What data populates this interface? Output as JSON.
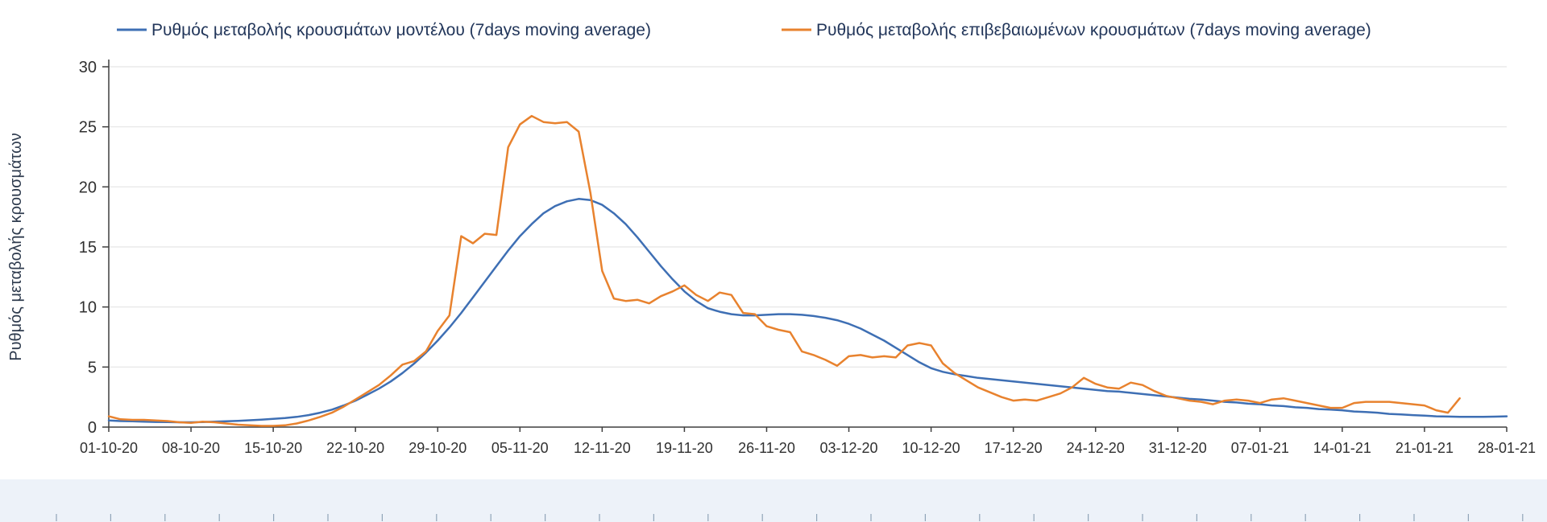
{
  "chart_data": {
    "type": "line",
    "title": "",
    "ylabel": "Ρυθμός μεταβολής κρουσμάτων",
    "xlabel": "",
    "ylim": [
      0,
      30
    ],
    "y_ticks": [
      0,
      5,
      10,
      15,
      20,
      25,
      30
    ],
    "grid": "horizontal",
    "legend_position": "top",
    "x_unit": "daily",
    "x_tick_interval_days": 7,
    "x_tick_labels": [
      "01-10-20",
      "08-10-20",
      "15-10-20",
      "22-10-20",
      "29-10-20",
      "05-11-20",
      "12-11-20",
      "19-11-20",
      "26-11-20",
      "03-12-20",
      "10-12-20",
      "17-12-20",
      "24-12-20",
      "31-12-20",
      "07-01-21",
      "14-01-21",
      "21-01-21",
      "28-01-21"
    ],
    "series": [
      {
        "name": "Ρυθμός μεταβολής κρουσμάτων μοντέλου (7days moving average)",
        "color": "#3e6fb4",
        "values": [
          0.55,
          0.5,
          0.48,
          0.45,
          0.43,
          0.42,
          0.4,
          0.4,
          0.42,
          0.45,
          0.48,
          0.52,
          0.57,
          0.62,
          0.68,
          0.75,
          0.85,
          1.0,
          1.2,
          1.45,
          1.8,
          2.2,
          2.7,
          3.2,
          3.8,
          4.5,
          5.3,
          6.2,
          7.2,
          8.3,
          9.5,
          10.8,
          12.1,
          13.4,
          14.7,
          15.9,
          16.9,
          17.8,
          18.4,
          18.8,
          19.0,
          18.9,
          18.5,
          17.8,
          16.9,
          15.8,
          14.6,
          13.4,
          12.3,
          11.3,
          10.5,
          9.9,
          9.6,
          9.4,
          9.3,
          9.3,
          9.35,
          9.4,
          9.4,
          9.35,
          9.25,
          9.1,
          8.9,
          8.6,
          8.2,
          7.7,
          7.2,
          6.6,
          6.0,
          5.4,
          4.9,
          4.6,
          4.4,
          4.25,
          4.1,
          4.0,
          3.9,
          3.8,
          3.7,
          3.6,
          3.5,
          3.4,
          3.3,
          3.2,
          3.1,
          3.0,
          2.95,
          2.85,
          2.75,
          2.65,
          2.55,
          2.45,
          2.35,
          2.3,
          2.2,
          2.1,
          2.05,
          1.95,
          1.9,
          1.8,
          1.75,
          1.65,
          1.6,
          1.5,
          1.45,
          1.4,
          1.3,
          1.25,
          1.2,
          1.1,
          1.05,
          1.0,
          0.95,
          0.9,
          0.88,
          0.86,
          0.85,
          0.85,
          0.87,
          0.9
        ]
      },
      {
        "name": "Ρυθμός μεταβολής επιβεβαιωμένων κρουσμάτων (7days moving average)",
        "color": "#e8822e",
        "values": [
          0.9,
          0.65,
          0.6,
          0.6,
          0.55,
          0.5,
          0.4,
          0.35,
          0.45,
          0.4,
          0.3,
          0.2,
          0.15,
          0.1,
          0.1,
          0.15,
          0.3,
          0.55,
          0.85,
          1.2,
          1.7,
          2.3,
          2.9,
          3.5,
          4.3,
          5.2,
          5.5,
          6.3,
          8.0,
          9.3,
          15.9,
          15.3,
          16.1,
          16.0,
          23.3,
          25.2,
          25.9,
          25.4,
          25.3,
          25.4,
          24.6,
          19.5,
          13.0,
          10.7,
          10.5,
          10.6,
          10.3,
          10.9,
          11.3,
          11.8,
          11.0,
          10.5,
          11.2,
          11.0,
          9.5,
          9.4,
          8.4,
          8.1,
          7.9,
          6.3,
          6.0,
          5.6,
          5.1,
          5.9,
          6.0,
          5.8,
          5.9,
          5.8,
          6.8,
          7.0,
          6.8,
          5.3,
          4.5,
          3.9,
          3.3,
          2.9,
          2.5,
          2.2,
          2.3,
          2.2,
          2.5,
          2.8,
          3.3,
          4.1,
          3.6,
          3.3,
          3.2,
          3.7,
          3.5,
          3.0,
          2.6,
          2.4,
          2.2,
          2.1,
          1.9,
          2.2,
          2.3,
          2.2,
          2.0,
          2.3,
          2.4,
          2.2,
          2.0,
          1.8,
          1.6,
          1.6,
          2.0,
          2.1,
          2.1,
          2.1,
          2.0,
          1.9,
          1.8,
          1.4,
          1.2,
          2.4
        ]
      }
    ]
  }
}
